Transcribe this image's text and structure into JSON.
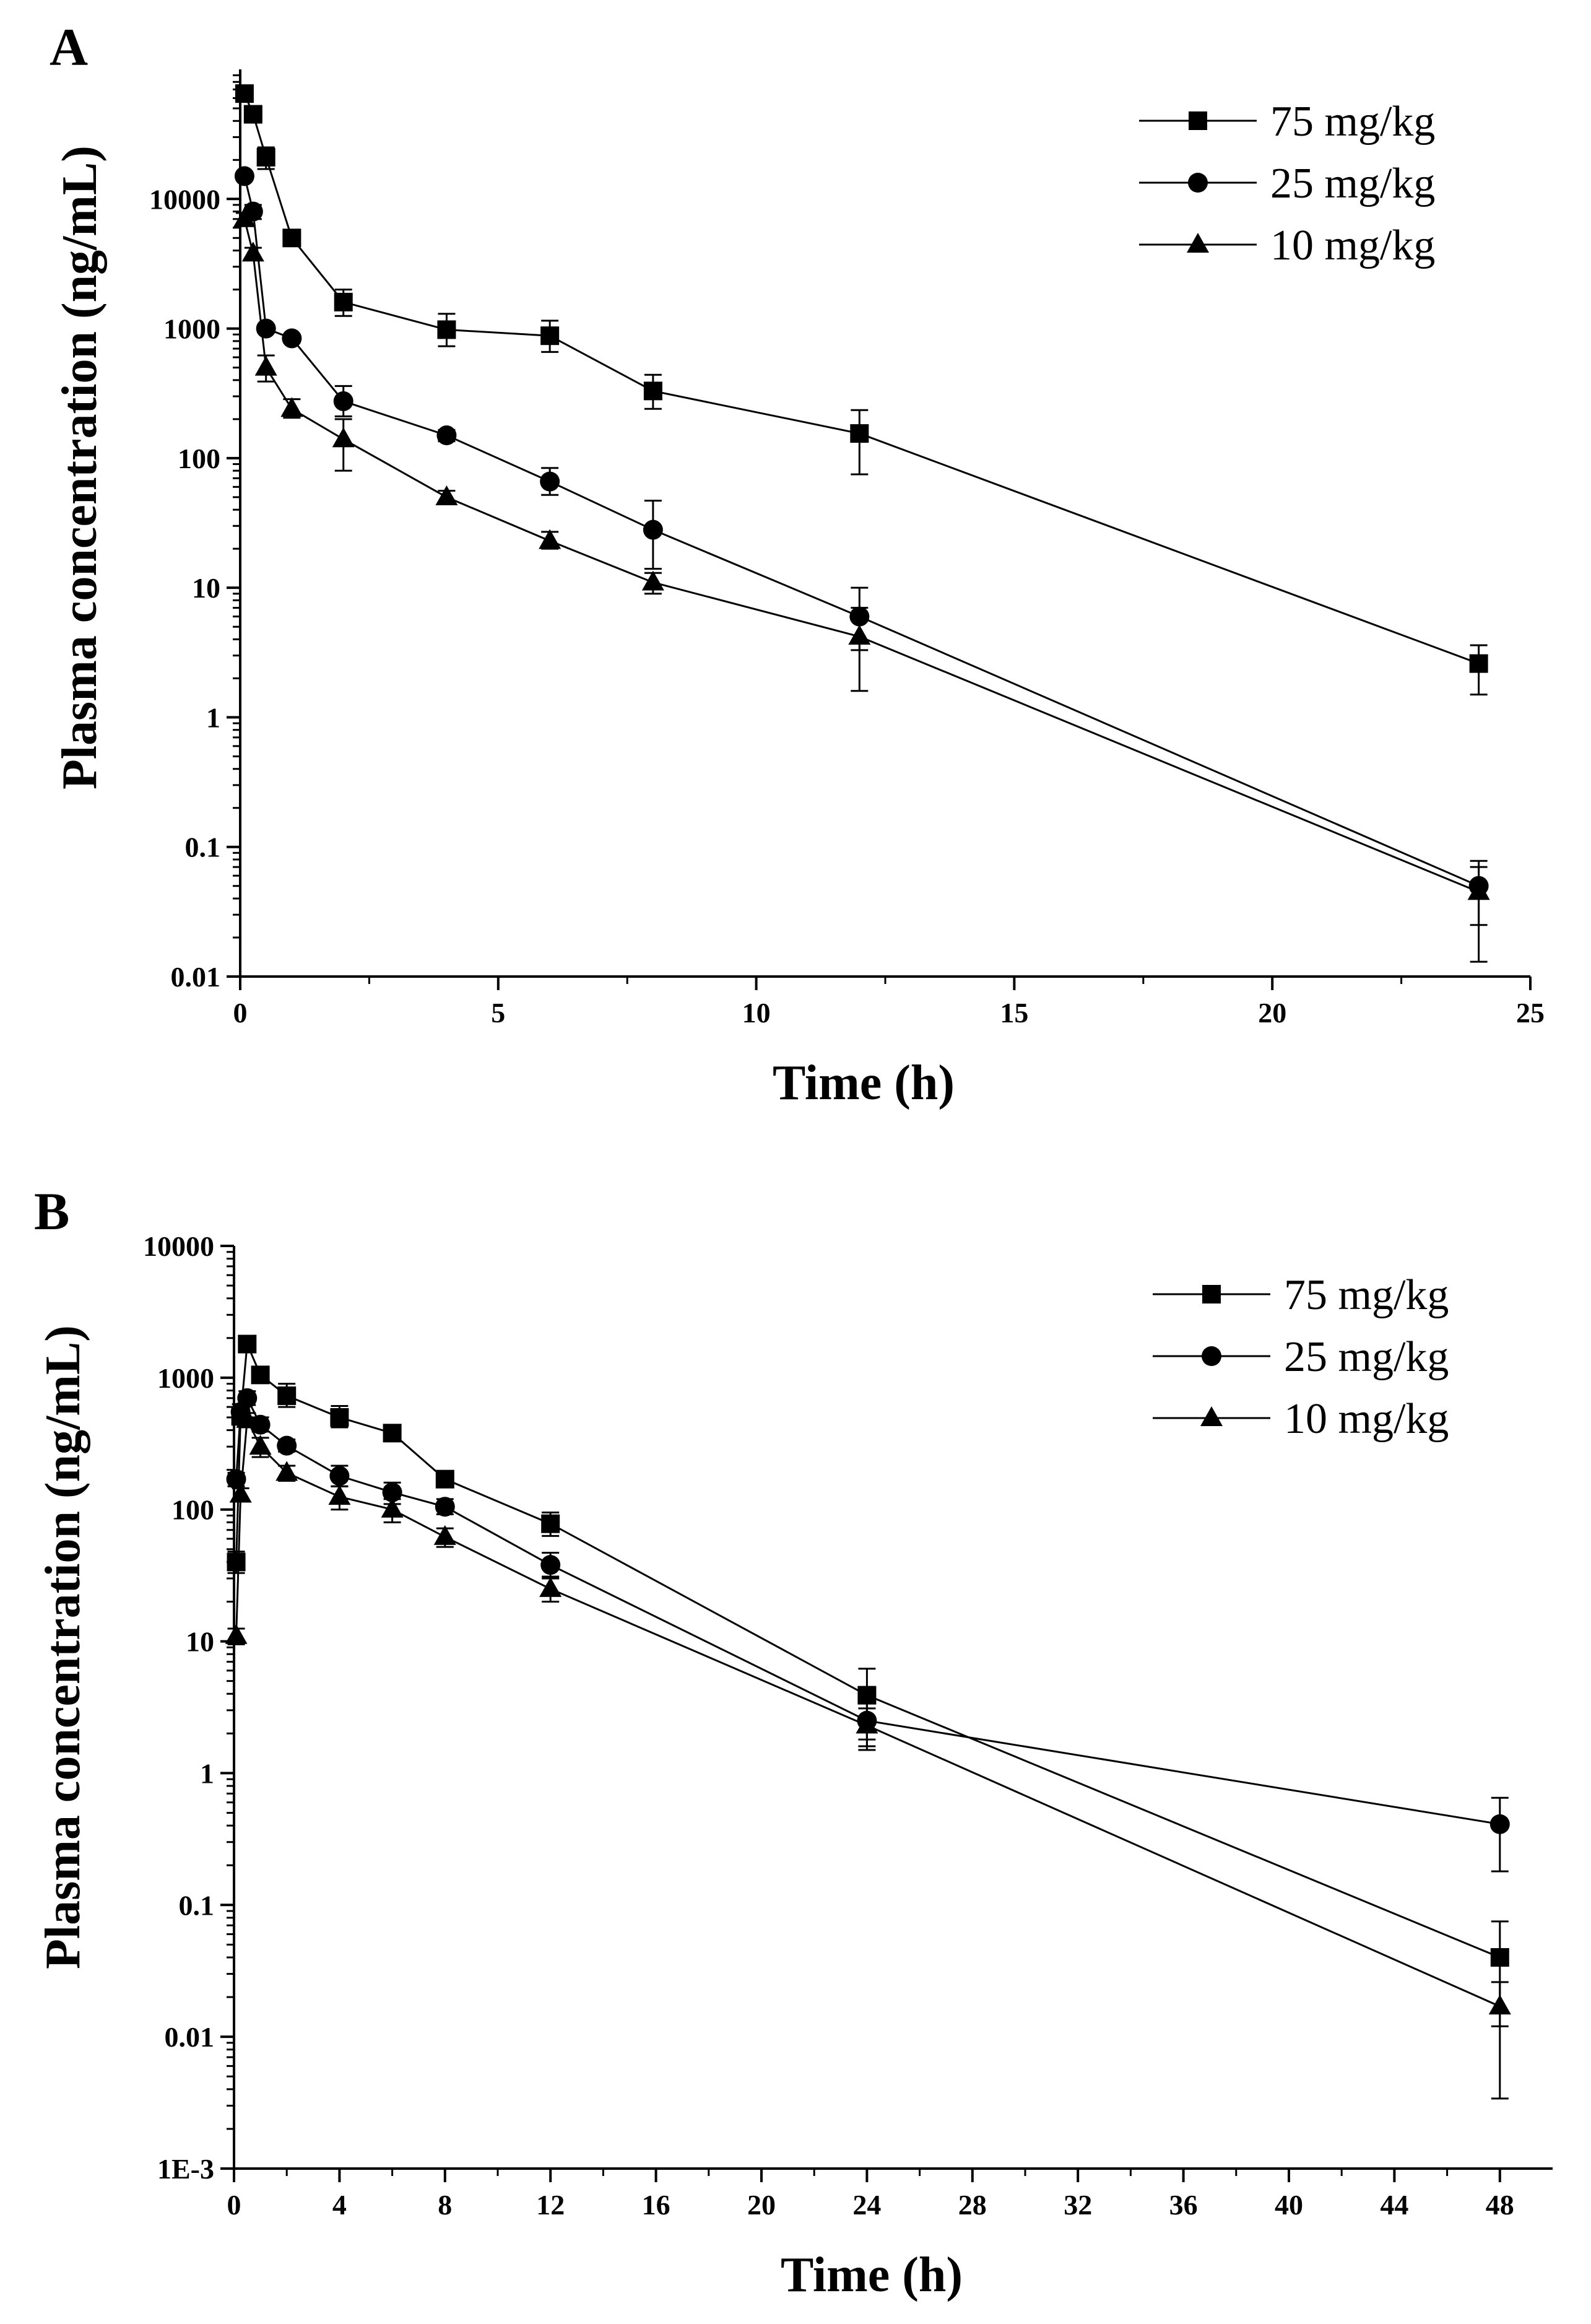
{
  "chart_data": [
    {
      "type": "line",
      "panel": "A",
      "title": "",
      "xlabel": "Time (h)",
      "ylabel": "Plasma concentration (ng/mL)",
      "xscale": "linear",
      "yscale": "log",
      "xlim": [
        0,
        25
      ],
      "ylim": [
        0.01,
        100000
      ],
      "xticks": [
        0,
        5,
        10,
        15,
        20,
        25
      ],
      "xtick_labels": [
        "0",
        "5",
        "10",
        "15",
        "20",
        "25"
      ],
      "yticks": [
        0.01,
        0.1,
        1,
        10,
        100,
        1000,
        10000
      ],
      "ytick_labels": [
        "0.01",
        "0.1",
        "1",
        "10",
        "100",
        "1000",
        "10000"
      ],
      "legend_position": "top-right",
      "series": [
        {
          "name": "75 mg/kg",
          "marker": "square",
          "x": [
            0.083,
            0.25,
            0.5,
            1,
            2,
            4,
            6,
            8,
            12,
            24
          ],
          "values": [
            65000,
            45000,
            21000,
            5000,
            1600,
            980,
            880,
            330,
            155,
            2.6
          ],
          "err_low": [
            58000,
            40000,
            17000,
            4500,
            1250,
            730,
            660,
            240,
            75,
            1.5
          ],
          "err_high": [
            72000,
            50000,
            25000,
            5500,
            2000,
            1300,
            1150,
            440,
            235,
            3.6
          ]
        },
        {
          "name": "25 mg/kg",
          "marker": "circle",
          "x": [
            0.083,
            0.25,
            0.5,
            1,
            2,
            4,
            6,
            8,
            12,
            24
          ],
          "values": [
            15000,
            8000,
            1000,
            840,
            275,
            150,
            66,
            28,
            6,
            0.05
          ],
          "err_low": [
            14000,
            7000,
            930,
            780,
            210,
            135,
            52,
            14,
            3.3,
            0.025
          ],
          "err_high": [
            16000,
            9000,
            1070,
            900,
            360,
            165,
            84,
            47,
            10,
            0.078
          ]
        },
        {
          "name": "10 mg/kg",
          "marker": "triangle",
          "x": [
            0.083,
            0.25,
            0.5,
            1,
            2,
            4,
            6,
            8,
            12,
            24
          ],
          "values": [
            7000,
            3800,
            500,
            240,
            140,
            50,
            23,
            11,
            4.2,
            0.045
          ],
          "err_low": [
            6200,
            3400,
            390,
            205,
            80,
            45,
            20,
            9,
            1.6,
            0.013
          ],
          "err_high": [
            7800,
            4200,
            620,
            285,
            200,
            56,
            27,
            13,
            7,
            0.07
          ]
        }
      ]
    },
    {
      "type": "line",
      "panel": "B",
      "title": "",
      "xlabel": "Time (h)",
      "ylabel": "Plasma concentration (ng/mL)",
      "xscale": "linear",
      "yscale": "log",
      "xlim": [
        0,
        50
      ],
      "ylim": [
        0.001,
        10000
      ],
      "xticks": [
        0,
        4,
        8,
        12,
        16,
        20,
        24,
        28,
        32,
        36,
        40,
        44,
        48
      ],
      "xtick_labels": [
        "0",
        "4",
        "8",
        "12",
        "16",
        "20",
        "24",
        "28",
        "32",
        "36",
        "40",
        "44",
        "48"
      ],
      "yticks": [
        0.001,
        0.01,
        0.1,
        1,
        10,
        100,
        1000,
        10000
      ],
      "ytick_labels": [
        "1E-3",
        "0.01",
        "0.1",
        "1",
        "10",
        "100",
        "1000",
        "10000"
      ],
      "legend_position": "top-right",
      "series": [
        {
          "name": "75 mg/kg",
          "marker": "square",
          "x": [
            0.083,
            0.25,
            0.5,
            1,
            2,
            4,
            6,
            8,
            12,
            24,
            48
          ],
          "values": [
            40,
            510,
            1800,
            1050,
            730,
            500,
            380,
            170,
            78,
            3.9,
            0.04
          ],
          "err_low": [
            33,
            440,
            1600,
            920,
            600,
            420,
            350,
            150,
            63,
            1.8,
            0.012
          ],
          "err_high": [
            48,
            590,
            2000,
            1180,
            900,
            610,
            410,
            195,
            95,
            6.2,
            0.075
          ]
        },
        {
          "name": "25 mg/kg",
          "marker": "circle",
          "x": [
            0.083,
            0.25,
            0.5,
            1,
            2,
            4,
            6,
            8,
            12,
            24,
            48
          ],
          "values": [
            170,
            550,
            700,
            440,
            305,
            180,
            135,
            105,
            38,
            2.5,
            0.41
          ],
          "err_low": [
            150,
            480,
            620,
            390,
            275,
            150,
            110,
            92,
            30,
            1.6,
            0.18
          ],
          "err_high": [
            190,
            630,
            790,
            500,
            340,
            215,
            160,
            120,
            47,
            3.5,
            0.65
          ]
        },
        {
          "name": "10 mg/kg",
          "marker": "triangle",
          "x": [
            0.083,
            0.25,
            0.5,
            1,
            2,
            4,
            6,
            8,
            12,
            24,
            48
          ],
          "values": [
            11,
            130,
            480,
            300,
            190,
            125,
            100,
            62,
            25,
            2.3,
            0.017
          ],
          "err_low": [
            9.5,
            115,
            420,
            250,
            165,
            100,
            80,
            52,
            20,
            1.5,
            0.0034
          ],
          "err_high": [
            12.5,
            145,
            540,
            350,
            215,
            150,
            120,
            72,
            31,
            3.1,
            0.026
          ]
        }
      ]
    }
  ]
}
